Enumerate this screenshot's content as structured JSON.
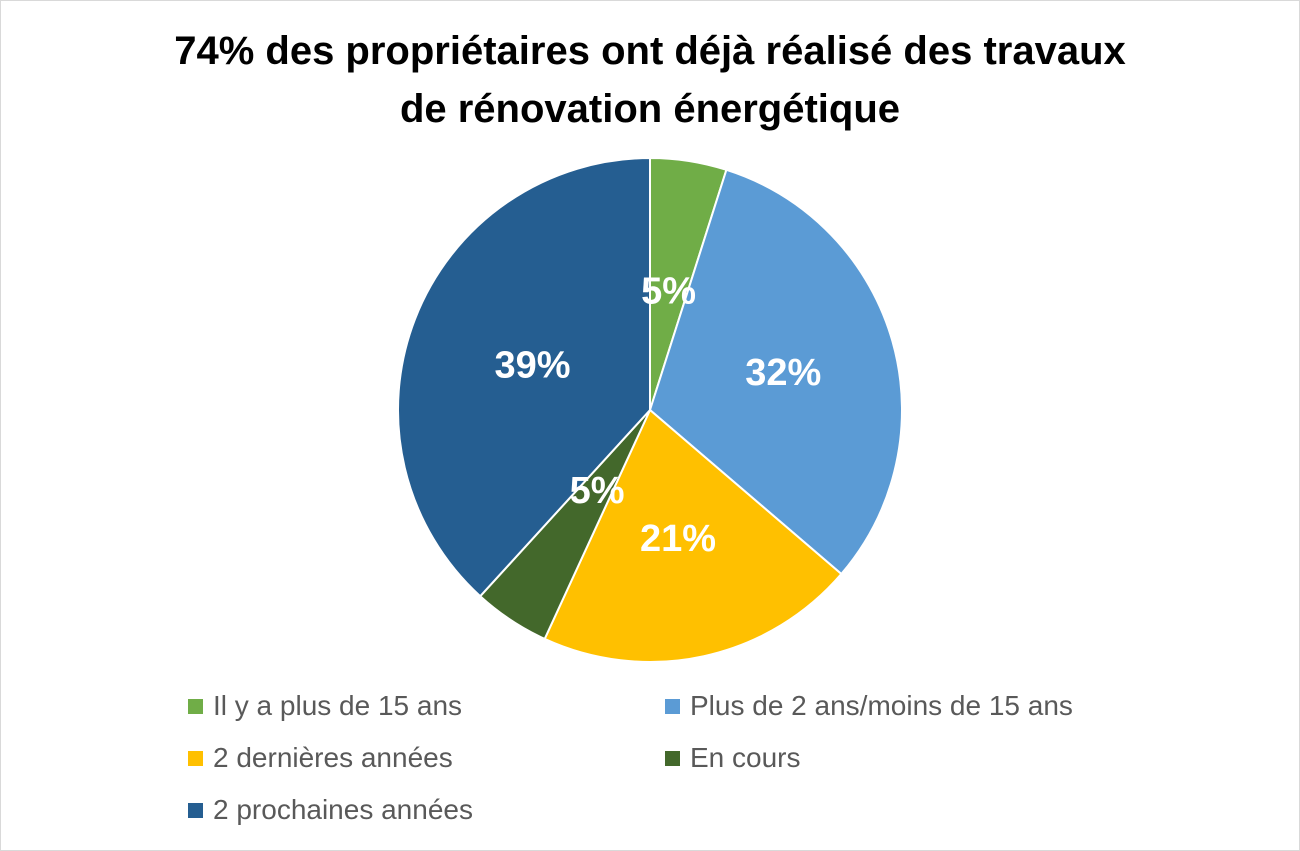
{
  "chart_data": {
    "type": "pie",
    "title_lines": [
      "74% des propriétaires ont déjà réalisé des travaux",
      "de rénovation énergétique"
    ],
    "categories": [
      "Il y a plus de 15 ans",
      "Plus de 2 ans/moins de 15 ans",
      "2 dernières années",
      "En cours",
      "2 prochaines années"
    ],
    "values": [
      5,
      32,
      21,
      5,
      39
    ],
    "data_labels": [
      "5%",
      "32%",
      "21%",
      "5%",
      "39%"
    ],
    "colors": [
      "#70AD47",
      "#5B9BD5",
      "#FFC000",
      "#43682B",
      "#255E91"
    ],
    "start_angle": "top",
    "direction": "clockwise",
    "legend_position": "bottom"
  }
}
